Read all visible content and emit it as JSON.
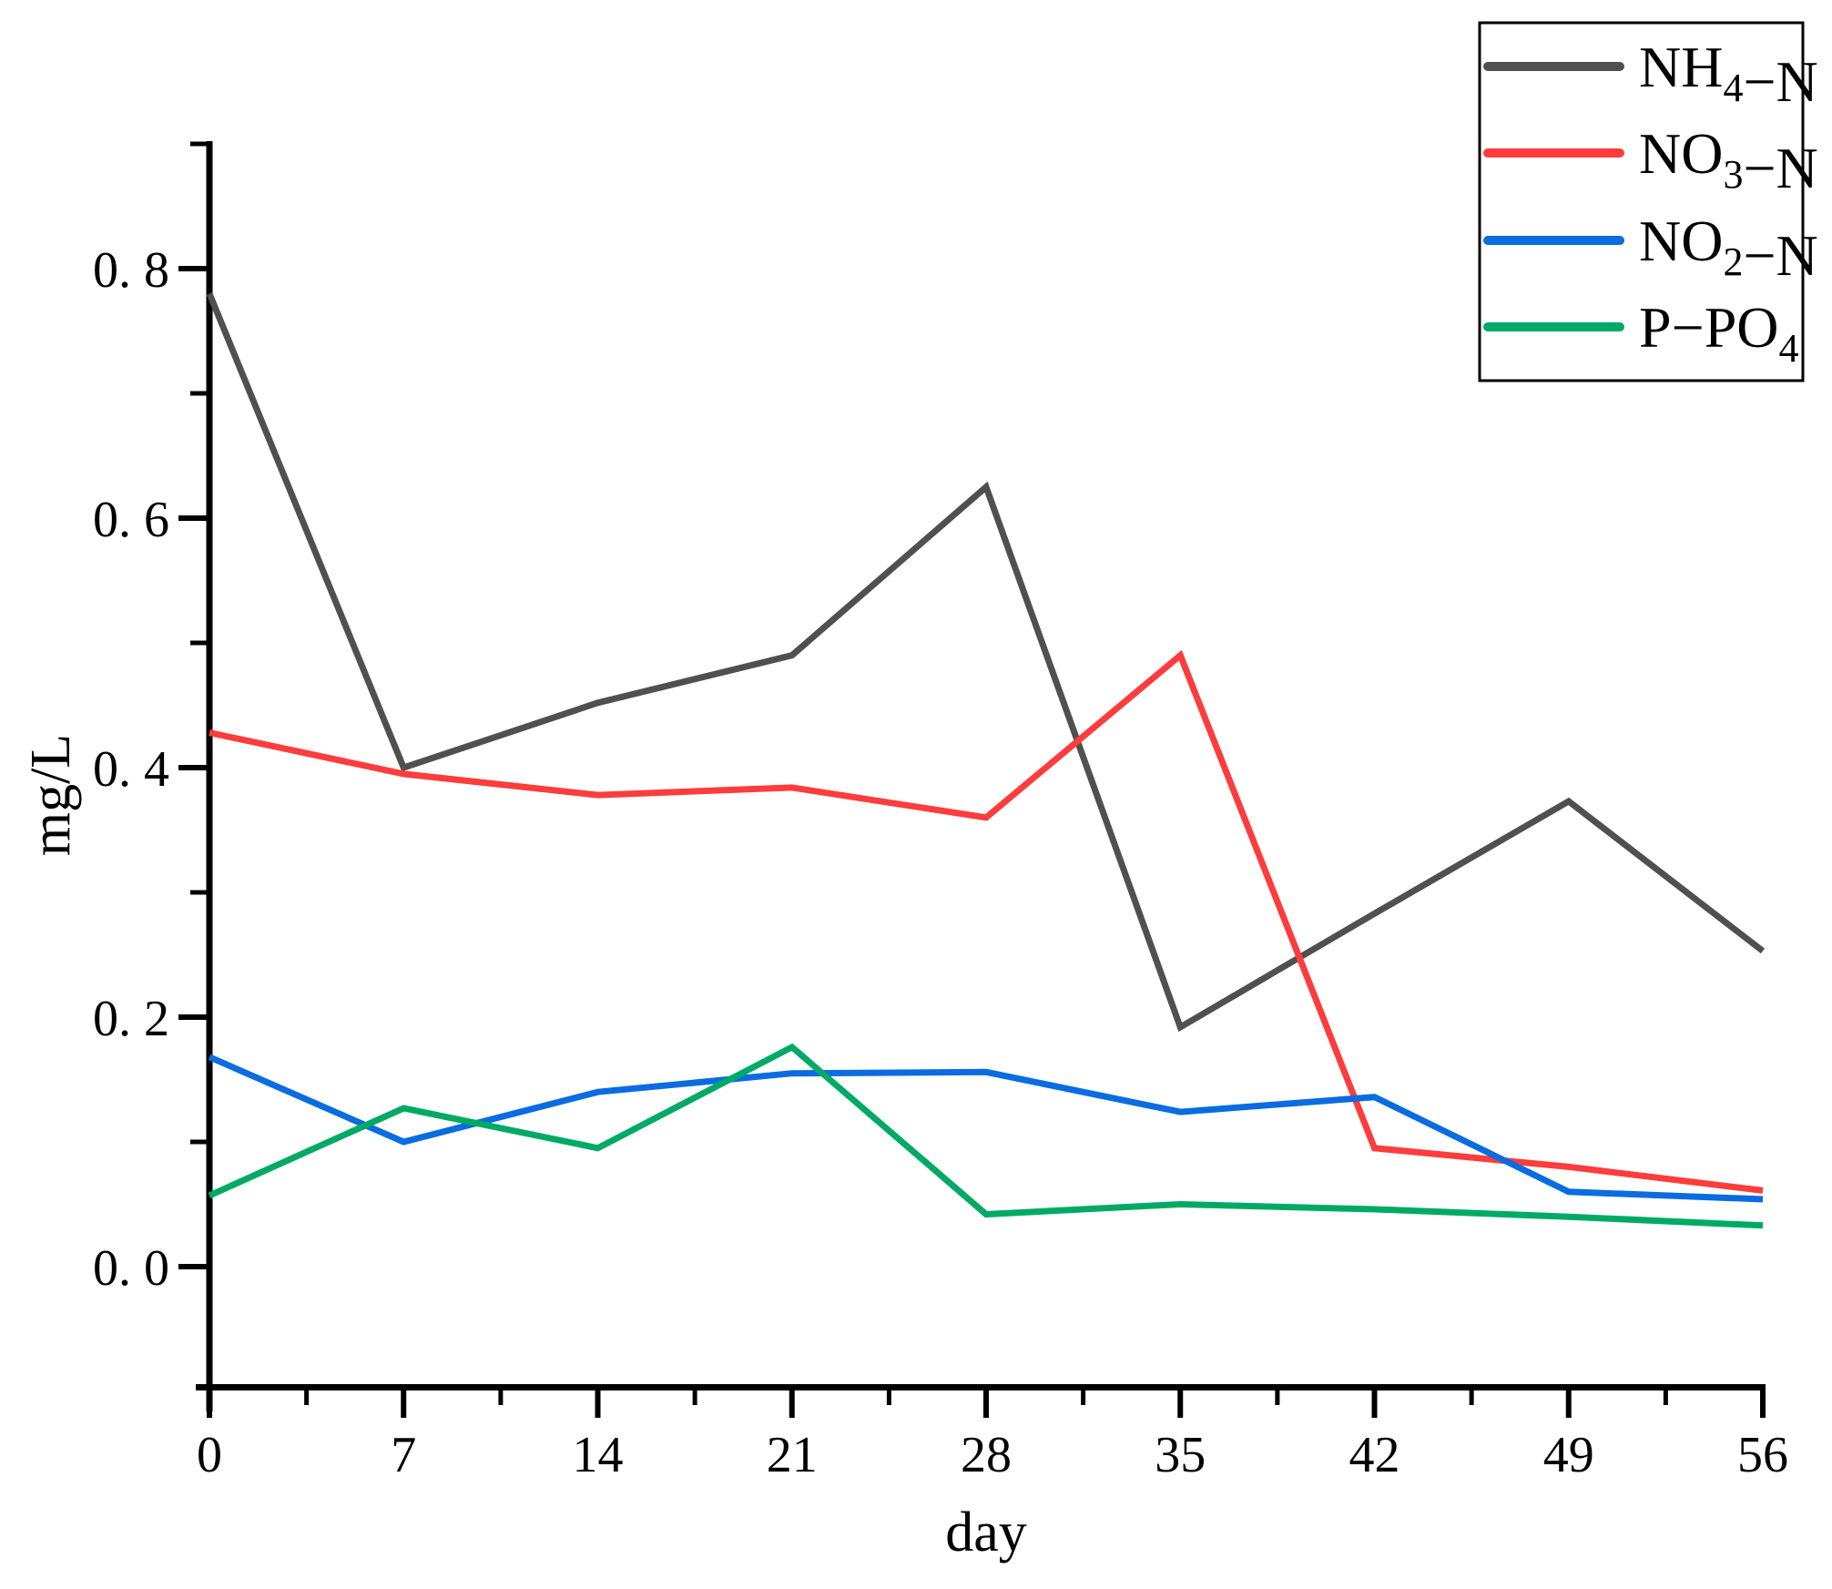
{
  "chart_data": {
    "type": "line",
    "title": "",
    "xlabel": "day",
    "ylabel": "mg/L",
    "x": [
      0,
      7,
      14,
      21,
      28,
      35,
      42,
      49,
      56
    ],
    "series": [
      {
        "name": "NH4-N",
        "color": "#505050",
        "values": [
          0.78,
          0.4,
          0.452,
          0.49,
          0.625,
          0.192,
          0.283,
          0.373,
          0.253
        ],
        "label_parts": [
          {
            "t": "NH"
          },
          {
            "t": "4",
            "sub": true
          },
          {
            "t": "−N"
          }
        ]
      },
      {
        "name": "NO3-N",
        "color": "#FD3C3C",
        "values": [
          0.428,
          0.395,
          0.378,
          0.384,
          0.36,
          0.49,
          0.095,
          0.08,
          0.061
        ],
        "label_parts": [
          {
            "t": "NO"
          },
          {
            "t": "3",
            "sub": true
          },
          {
            "t": "−N"
          }
        ]
      },
      {
        "name": "NO2-N",
        "color": "#0A6CE0",
        "values": [
          0.168,
          0.1,
          0.14,
          0.155,
          0.156,
          0.124,
          0.136,
          0.06,
          0.054
        ],
        "label_parts": [
          {
            "t": "NO"
          },
          {
            "t": "2",
            "sub": true
          },
          {
            "t": "−N"
          }
        ]
      },
      {
        "name": "P-PO4",
        "color": "#00AA66",
        "values": [
          0.057,
          0.127,
          0.095,
          0.176,
          0.042,
          0.05,
          0.046,
          0.04,
          0.033
        ],
        "label_parts": [
          {
            "t": "P−PO"
          },
          {
            "t": "4",
            "sub": true
          }
        ]
      }
    ],
    "xlim": [
      0,
      56
    ],
    "ylim": [
      -0.097,
      0.9
    ],
    "x_major_ticks": [
      0,
      7,
      14,
      21,
      28,
      35,
      42,
      49,
      56
    ],
    "x_tick_labels": [
      "0",
      "7",
      "14",
      "21",
      "28",
      "35",
      "42",
      "49",
      "56"
    ],
    "x_minor_ticks": [
      3.5,
      10.5,
      17.5,
      24.5,
      31.5,
      38.5,
      45.5,
      52.5
    ],
    "y_major_ticks": [
      0.0,
      0.2,
      0.4,
      0.6,
      0.8
    ],
    "y_tick_labels": [
      "0. 0",
      "0. 2",
      "0. 4",
      "0. 6",
      "0. 8"
    ],
    "y_minor_ticks": [
      0.1,
      0.3,
      0.5,
      0.7,
      0.9
    ],
    "grid": false,
    "legend_position": "top-right",
    "axis_color": "#000000",
    "background_color": "#ffffff"
  }
}
